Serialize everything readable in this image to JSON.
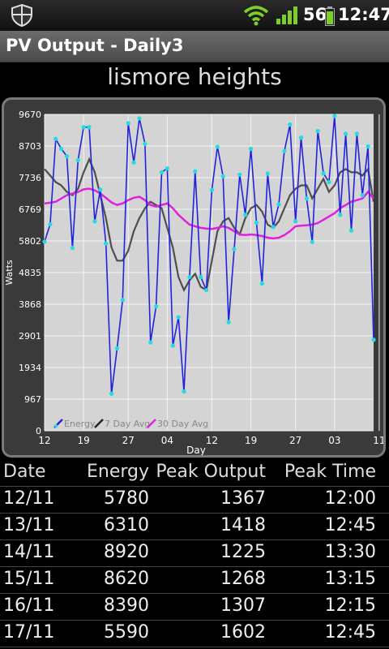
{
  "status": {
    "signal_text": "56",
    "time": "12:47"
  },
  "app": {
    "title": "PV Output - Daily3"
  },
  "system_name": "lismore heights",
  "chart_data": {
    "type": "line",
    "ylabel": "Watts",
    "xlabel": "Day",
    "ylim": [
      0,
      9670
    ],
    "yticks": [
      "0",
      "967",
      "1934",
      "2901",
      "3868",
      "4835",
      "5802",
      "6769",
      "7736",
      "8703",
      "9670"
    ],
    "xticks": [
      {
        "label": "12",
        "day": 0
      },
      {
        "label": "19",
        "day": 7
      },
      {
        "label": "27",
        "day": 15
      },
      {
        "label": "04",
        "day": 22
      },
      {
        "label": "12",
        "day": 30
      },
      {
        "label": "19",
        "day": 37
      },
      {
        "label": "27",
        "day": 45
      },
      {
        "label": "03",
        "day": 52
      },
      {
        "label": "11",
        "day": 60
      }
    ],
    "grid": true,
    "legend_position": "bottom-left",
    "series": [
      {
        "name": "Energy",
        "color": "#2222dd",
        "marker_color": "#22dddd",
        "values": [
          5780,
          6310,
          8920,
          8620,
          8390,
          5590,
          8270,
          9280,
          9280,
          6400,
          7370,
          5720,
          1130,
          2520,
          4000,
          9400,
          8200,
          9550,
          8770,
          2700,
          3800,
          7900,
          8020,
          2600,
          3470,
          1200,
          4700,
          7930,
          4700,
          4300,
          7360,
          8680,
          7780,
          3320,
          5550,
          7830,
          6600,
          8620,
          6360,
          4500,
          7860,
          6230,
          6920,
          8550,
          9360,
          6400,
          8960,
          7100,
          5770,
          9160,
          7870,
          7600,
          9620,
          6600,
          9080,
          6120,
          9080,
          7200,
          8690,
          2780
        ]
      },
      {
        "name": "7 Day Avg",
        "color": "#555555",
        "values": [
          8000,
          7800,
          7600,
          7500,
          7300,
          7200,
          7400,
          7900,
          8300,
          7900,
          7200,
          6500,
          5600,
          5200,
          5200,
          5500,
          6100,
          6500,
          6800,
          7000,
          6900,
          6800,
          6200,
          5600,
          4700,
          4300,
          4600,
          4800,
          4400,
          4300,
          5200,
          6100,
          6400,
          6500,
          6200,
          6000,
          6500,
          6800,
          6900,
          6700,
          6300,
          6200,
          6400,
          6800,
          7200,
          7400,
          7500,
          7500,
          7100,
          7400,
          7700,
          7300,
          7500,
          7900,
          8000,
          7900,
          7900,
          7800,
          8000,
          7000
        ]
      },
      {
        "name": "30 Day Avg",
        "color": "#e020e0",
        "values": [
          6950,
          6970,
          7000,
          7100,
          7200,
          7250,
          7300,
          7380,
          7400,
          7350,
          7250,
          7120,
          6980,
          6900,
          6950,
          7050,
          7120,
          7150,
          7050,
          6900,
          6850,
          6900,
          6950,
          6800,
          6600,
          6450,
          6300,
          6250,
          6200,
          6180,
          6170,
          6200,
          6250,
          6200,
          6100,
          6000,
          5980,
          6000,
          5980,
          5950,
          5900,
          5880,
          5900,
          5980,
          6100,
          6250,
          6270,
          6280,
          6300,
          6350,
          6450,
          6550,
          6650,
          6800,
          6900,
          7000,
          7050,
          7100,
          7300,
          7100
        ]
      }
    ]
  },
  "table": {
    "headers": {
      "date": "Date",
      "energy": "Energy",
      "peak_output": "Peak Output",
      "peak_time": "Peak Time"
    },
    "rows": [
      {
        "date": "12/11",
        "energy": "5780",
        "peak_output": "1367",
        "peak_time": "12:00"
      },
      {
        "date": "13/11",
        "energy": "6310",
        "peak_output": "1418",
        "peak_time": "12:45"
      },
      {
        "date": "14/11",
        "energy": "8920",
        "peak_output": "1225",
        "peak_time": "13:30"
      },
      {
        "date": "15/11",
        "energy": "8620",
        "peak_output": "1268",
        "peak_time": "13:15"
      },
      {
        "date": "16/11",
        "energy": "8390",
        "peak_output": "1307",
        "peak_time": "12:15"
      },
      {
        "date": "17/11",
        "energy": "5590",
        "peak_output": "1602",
        "peak_time": "12:45"
      }
    ]
  }
}
